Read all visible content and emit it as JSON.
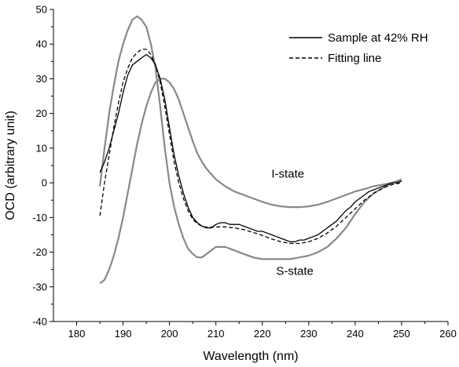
{
  "chart_data": {
    "type": "line",
    "title": "",
    "xlabel": "Wavelength (nm)",
    "ylabel": "OCD (arbitrary unit)",
    "xlim": [
      175,
      260
    ],
    "ylim": [
      -40,
      50
    ],
    "xticks": [
      180,
      190,
      200,
      210,
      220,
      230,
      240,
      250,
      260
    ],
    "yticks": [
      -40,
      -30,
      -20,
      -10,
      0,
      10,
      20,
      30,
      40,
      50
    ],
    "grid": false,
    "legend_position": "top-right",
    "legend": [
      {
        "label": "Sample at 42% RH",
        "style": "solid",
        "color": "#000000"
      },
      {
        "label": "Fitting line",
        "style": "dashed",
        "color": "#000000"
      }
    ],
    "annotations": [
      {
        "text": "I-state",
        "x": 225.5,
        "y": 1.5
      },
      {
        "text": "S-state",
        "x": 227,
        "y": -26.5
      }
    ],
    "series": [
      {
        "name": "Sample at 42% RH",
        "style": "solid",
        "color": "#000000",
        "x": [
          185,
          186,
          187,
          188,
          189,
          190,
          191,
          192,
          193,
          194,
          195,
          196,
          197,
          198,
          199,
          200,
          201,
          202,
          203,
          204,
          205,
          206,
          207,
          208,
          209,
          210,
          211,
          212,
          213,
          214,
          215,
          216,
          217,
          218,
          219,
          220,
          221,
          222,
          223,
          224,
          225,
          226,
          227,
          228,
          229,
          230,
          231,
          232,
          233,
          234,
          235,
          236,
          237,
          238,
          239,
          240,
          241,
          242,
          243,
          244,
          245,
          246,
          247,
          248,
          249,
          250
        ],
        "y": [
          3,
          6,
          10,
          15,
          20,
          26,
          31,
          34,
          35,
          36,
          37,
          36,
          34,
          30,
          24,
          16,
          8,
          2,
          -3,
          -7,
          -10,
          -11.5,
          -12.5,
          -13,
          -13,
          -12,
          -11.5,
          -11.5,
          -12,
          -12,
          -12,
          -12.5,
          -13,
          -13.5,
          -14,
          -14,
          -14.5,
          -15,
          -15.5,
          -16,
          -16.5,
          -17,
          -17,
          -16.5,
          -16.5,
          -16,
          -15.5,
          -15,
          -14,
          -13,
          -12,
          -11,
          -9.5,
          -8,
          -7,
          -5.5,
          -4.5,
          -3.5,
          -2.5,
          -2,
          -1.5,
          -1,
          -0.5,
          0,
          0,
          0.5
        ]
      },
      {
        "name": "Fitting line",
        "style": "dashed",
        "color": "#000000",
        "x": [
          185,
          186,
          187,
          188,
          189,
          190,
          191,
          192,
          193,
          194,
          195,
          196,
          197,
          198,
          199,
          200,
          201,
          202,
          203,
          204,
          205,
          206,
          207,
          208,
          209,
          210,
          212,
          214,
          216,
          218,
          220,
          222,
          224,
          226,
          228,
          230,
          232,
          234,
          236,
          238,
          240,
          242,
          244,
          246,
          248,
          250
        ],
        "y": [
          -9.5,
          0,
          8,
          16,
          23,
          29,
          33,
          36,
          37.5,
          38.5,
          38.5,
          37,
          34,
          29,
          22,
          14,
          6,
          0,
          -4.5,
          -8,
          -10.5,
          -11.8,
          -12.5,
          -12.8,
          -12.8,
          -12.7,
          -12.7,
          -13,
          -13.5,
          -14.3,
          -15.2,
          -16.2,
          -17,
          -17.5,
          -17.5,
          -17,
          -16,
          -14.5,
          -12.5,
          -10,
          -7.5,
          -5,
          -3,
          -1.5,
          -0.5,
          0
        ]
      },
      {
        "name": "",
        "style": "solid",
        "color": "#888888",
        "x": [
          185,
          186,
          187,
          188,
          189,
          190,
          191,
          192,
          193,
          194,
          195,
          196,
          197,
          198,
          199,
          200,
          201,
          202,
          203,
          204,
          205,
          206,
          207,
          208,
          209,
          210,
          212,
          214,
          216,
          218,
          220,
          222,
          224,
          226,
          228,
          230,
          232,
          234,
          236,
          238,
          240,
          242,
          244,
          246,
          248,
          250
        ],
        "y": [
          -1,
          10,
          20,
          28,
          35,
          40,
          44,
          47,
          48,
          47,
          45,
          40,
          33,
          22,
          10,
          0,
          -7,
          -12,
          -16,
          -19,
          -20.5,
          -21.5,
          -21.5,
          -20.5,
          -19.5,
          -18.5,
          -18.5,
          -19.5,
          -20.5,
          -21.5,
          -22,
          -22,
          -22,
          -22,
          -21.5,
          -21,
          -20,
          -18.5,
          -16,
          -13,
          -9,
          -5.5,
          -3,
          -1.5,
          0,
          1
        ]
      },
      {
        "name": "",
        "style": "solid",
        "color": "#888888",
        "x": [
          185,
          186,
          187,
          188,
          189,
          190,
          191,
          192,
          193,
          194,
          195,
          196,
          197,
          198,
          199,
          200,
          201,
          202,
          203,
          204,
          205,
          206,
          207,
          208,
          210,
          212,
          214,
          216,
          218,
          220,
          222,
          224,
          226,
          228,
          230,
          232,
          234,
          236,
          238,
          240,
          242,
          244,
          246,
          248,
          250
        ],
        "y": [
          -29,
          -28,
          -25,
          -21,
          -16,
          -10,
          -3,
          4,
          11,
          17,
          22,
          26,
          29,
          30,
          30,
          29,
          27,
          24,
          20,
          16,
          12,
          8.5,
          6,
          4,
          1,
          -1,
          -2.5,
          -3.5,
          -4.5,
          -5.5,
          -6.3,
          -6.8,
          -7,
          -7,
          -6.8,
          -6.3,
          -5.5,
          -4.5,
          -3.5,
          -2.5,
          -1.8,
          -1,
          -0.5,
          0,
          0.5
        ]
      }
    ]
  }
}
